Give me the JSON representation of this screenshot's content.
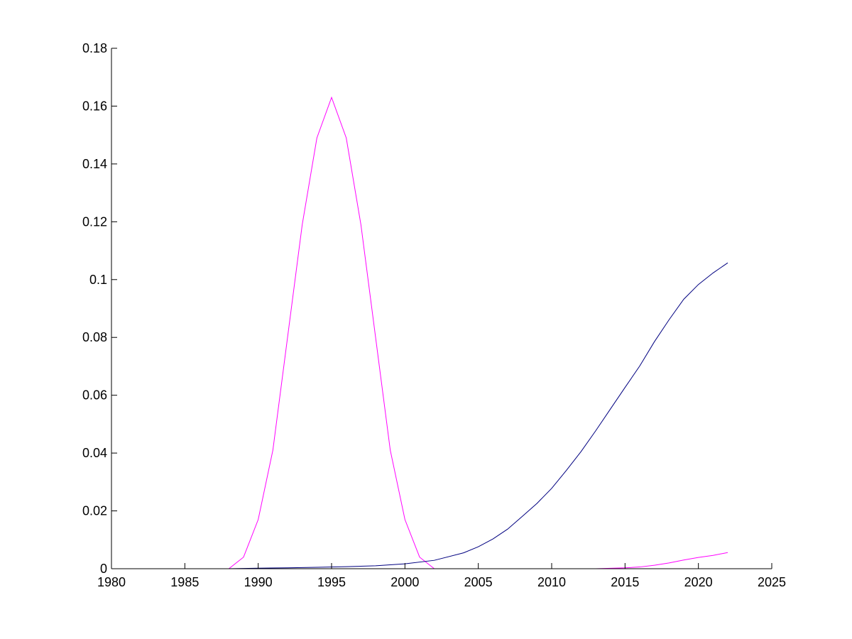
{
  "chart_data": {
    "type": "line",
    "title": "",
    "xlabel": "",
    "ylabel": "",
    "xlim": [
      1980,
      2025
    ],
    "ylim": [
      0,
      0.18
    ],
    "xticks": [
      1980,
      1985,
      1990,
      1995,
      2000,
      2005,
      2010,
      2015,
      2020,
      2025
    ],
    "yticks": [
      0,
      0.02,
      0.04,
      0.06,
      0.08,
      0.1,
      0.12,
      0.14,
      0.16,
      0.18
    ],
    "xtick_labels": [
      "1980",
      "1985",
      "1990",
      "1995",
      "2000",
      "2005",
      "2010",
      "2015",
      "2020",
      "2025"
    ],
    "ytick_labels": [
      "0",
      "0.02",
      "0.04",
      "0.06",
      "0.08",
      "0.1",
      "0.12",
      "0.14",
      "0.16",
      "0.18"
    ],
    "grid": false,
    "series": [
      {
        "color": "#ff00ff",
        "points": [
          [
            1980,
            0
          ],
          [
            1988,
            0
          ],
          [
            1989,
            0.004
          ],
          [
            1990,
            0.017
          ],
          [
            1991,
            0.041
          ],
          [
            1992,
            0.08
          ],
          [
            1993,
            0.119
          ],
          [
            1994,
            0.149
          ],
          [
            1995,
            0.163
          ],
          [
            1996,
            0.149
          ],
          [
            1997,
            0.119
          ],
          [
            1998,
            0.08
          ],
          [
            1999,
            0.041
          ],
          [
            2000,
            0.017
          ],
          [
            2001,
            0.004
          ],
          [
            2002,
            0
          ]
        ]
      },
      {
        "color": "#ff00ff",
        "points": [
          [
            2002,
            0
          ],
          [
            2013,
            0
          ],
          [
            2015,
            0.0003
          ],
          [
            2016,
            0.0006
          ],
          [
            2017,
            0.0012
          ],
          [
            2018,
            0.002
          ],
          [
            2019,
            0.003
          ],
          [
            2020,
            0.0039
          ],
          [
            2021,
            0.0046
          ],
          [
            2022,
            0.0056
          ]
        ]
      },
      {
        "color": "#000080",
        "points": [
          [
            1980,
            0
          ],
          [
            1988,
            0
          ],
          [
            1990,
            0.0002
          ],
          [
            1992,
            0.0003
          ],
          [
            1994,
            0.0005
          ],
          [
            1996,
            0.0007
          ],
          [
            1998,
            0.001
          ],
          [
            2000,
            0.0017
          ],
          [
            2002,
            0.0029
          ],
          [
            2004,
            0.0055
          ],
          [
            2005,
            0.0076
          ],
          [
            2006,
            0.0103
          ],
          [
            2007,
            0.0137
          ],
          [
            2008,
            0.0181
          ],
          [
            2009,
            0.0226
          ],
          [
            2010,
            0.0278
          ],
          [
            2011,
            0.034
          ],
          [
            2012,
            0.0405
          ],
          [
            2013,
            0.0477
          ],
          [
            2014,
            0.0552
          ],
          [
            2015,
            0.0627
          ],
          [
            2016,
            0.0701
          ],
          [
            2017,
            0.0785
          ],
          [
            2018,
            0.0861
          ],
          [
            2019,
            0.0932
          ],
          [
            2020,
            0.0983
          ],
          [
            2021,
            0.1023
          ],
          [
            2022,
            0.1058
          ]
        ]
      }
    ]
  }
}
